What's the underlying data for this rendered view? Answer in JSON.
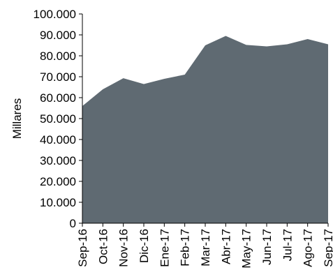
{
  "chart_data": {
    "type": "area",
    "title": "",
    "xlabel": "",
    "ylabel": "Millares",
    "categories": [
      "Sep-16",
      "Oct-16",
      "Nov-16",
      "Dic-16",
      "Ene-17",
      "Feb-17",
      "Mar-17",
      "Abr-17",
      "May-17",
      "Jun-17",
      "Jul-17",
      "Ago-17",
      "Sep-17"
    ],
    "values": [
      56000,
      64000,
      69300,
      66500,
      69000,
      71000,
      85000,
      89500,
      85200,
      84500,
      85500,
      88000,
      85500
    ],
    "y_ticks": [
      "0",
      "10.000",
      "20.000",
      "30.000",
      "40.000",
      "50.000",
      "60.000",
      "70.000",
      "80.000",
      "90.000",
      "100.000"
    ],
    "ylim": [
      0,
      100000
    ],
    "grid": false,
    "legend": "none",
    "colors": {
      "area": "#5f6a72",
      "axis": "#000000"
    }
  }
}
